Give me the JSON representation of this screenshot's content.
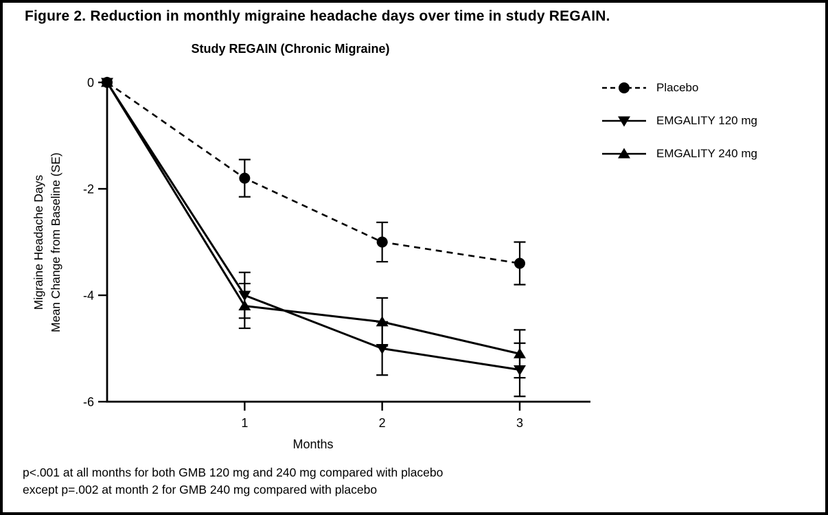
{
  "window": {
    "background_color": "#ffffff",
    "frame_border_color": "#000000"
  },
  "figure": {
    "title": "Figure 2. Reduction in monthly migraine headache days over time in study REGAIN.",
    "footnote_line1": "p<.001 at all months for both GMB 120 mg and 240 mg compared with placebo",
    "footnote_line2": "except p=.002 at month 2 for GMB 240 mg compared with placebo"
  },
  "chart_data": {
    "type": "line",
    "title": "Study REGAIN (Chronic Migraine)",
    "xlabel": "Months",
    "ylabel_line1": "Migraine Headache Days",
    "ylabel_line2": "Mean Change from Baseline (SE)",
    "x": [
      0,
      1,
      2,
      3
    ],
    "xtick_labels": [
      "1",
      "2",
      "3"
    ],
    "xtick_values": [
      1,
      2,
      3
    ],
    "ytick_labels": [
      "0",
      "-2",
      "-4",
      "-6"
    ],
    "ytick_values": [
      0,
      -2,
      -4,
      -6
    ],
    "xlim": [
      0,
      3.5
    ],
    "ylim": [
      -6,
      0
    ],
    "grid": false,
    "legend_position": "right",
    "ink_color": "#000000",
    "error_bars": "SE",
    "series": [
      {
        "name": "Placebo",
        "marker": "circle",
        "line_style": "dashed",
        "values": [
          0,
          -1.8,
          -3.0,
          -3.4
        ],
        "se": [
          0,
          0.35,
          0.37,
          0.4
        ]
      },
      {
        "name": "EMGALITY 120 mg",
        "marker": "triangle-down",
        "line_style": "solid",
        "values": [
          0,
          -4.0,
          -5.0,
          -5.4
        ],
        "se": [
          0,
          0.43,
          0.5,
          0.5
        ]
      },
      {
        "name": "EMGALITY 240 mg",
        "marker": "triangle-up",
        "line_style": "solid",
        "values": [
          0,
          -4.2,
          -4.5,
          -5.1
        ],
        "se": [
          0,
          0.42,
          0.45,
          0.45
        ]
      }
    ]
  }
}
